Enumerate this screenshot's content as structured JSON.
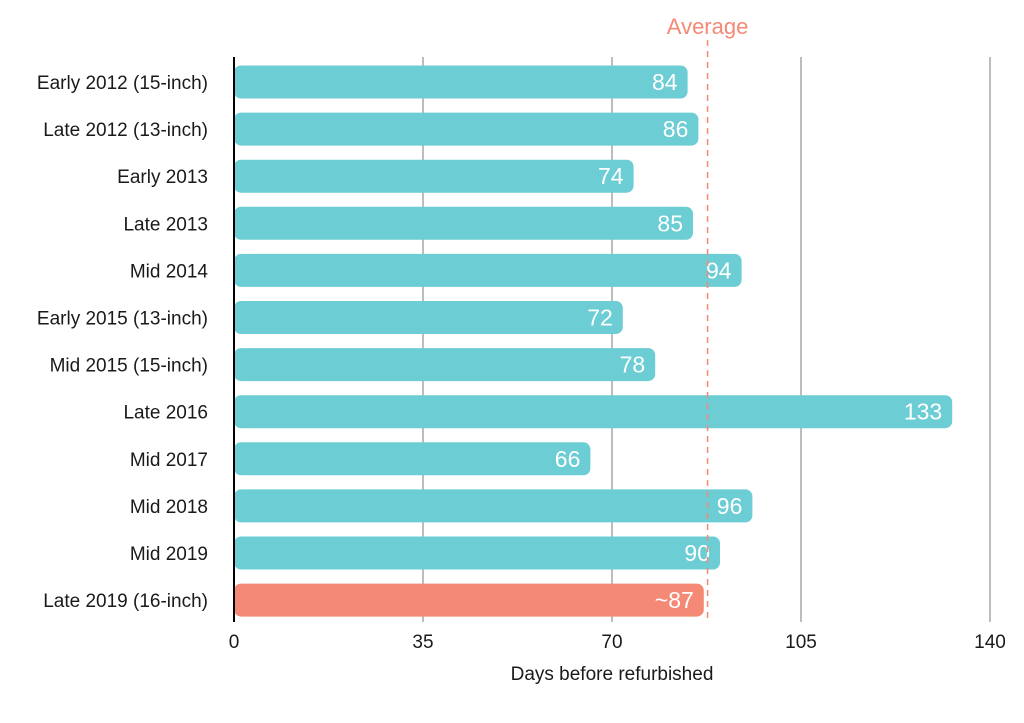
{
  "chart_data": {
    "type": "bar",
    "orientation": "horizontal",
    "categories": [
      "Early 2012 (15-inch)",
      "Late 2012 (13-inch)",
      "Early 2013",
      "Late 2013",
      "Mid 2014",
      "Early 2015 (13-inch)",
      "Mid 2015 (15-inch)",
      "Late 2016",
      "Mid 2017",
      "Mid 2018",
      "Mid 2019",
      "Late 2019 (16-inch)"
    ],
    "values": [
      84,
      86,
      74,
      85,
      94,
      72,
      78,
      133,
      66,
      96,
      90,
      87
    ],
    "value_labels": [
      "84",
      "86",
      "74",
      "85",
      "94",
      "72",
      "78",
      "133",
      "66",
      "96",
      "90",
      "~87"
    ],
    "highlight_index": 11,
    "xlabel": "Days before refurbished",
    "xlim": [
      0,
      140
    ],
    "xticks": [
      0,
      35,
      70,
      105,
      140
    ],
    "xtick_labels": [
      "0",
      "35",
      "70",
      "105",
      "140"
    ],
    "grid": "vertical",
    "reference_line": {
      "label": "Average",
      "value": 87.7,
      "style": "dashed"
    },
    "colors": {
      "bar": "#6ccdd4",
      "highlight": "#f48a76",
      "average": "#f48a76",
      "grid": "#bdbdbd",
      "axis": "#000000"
    }
  }
}
